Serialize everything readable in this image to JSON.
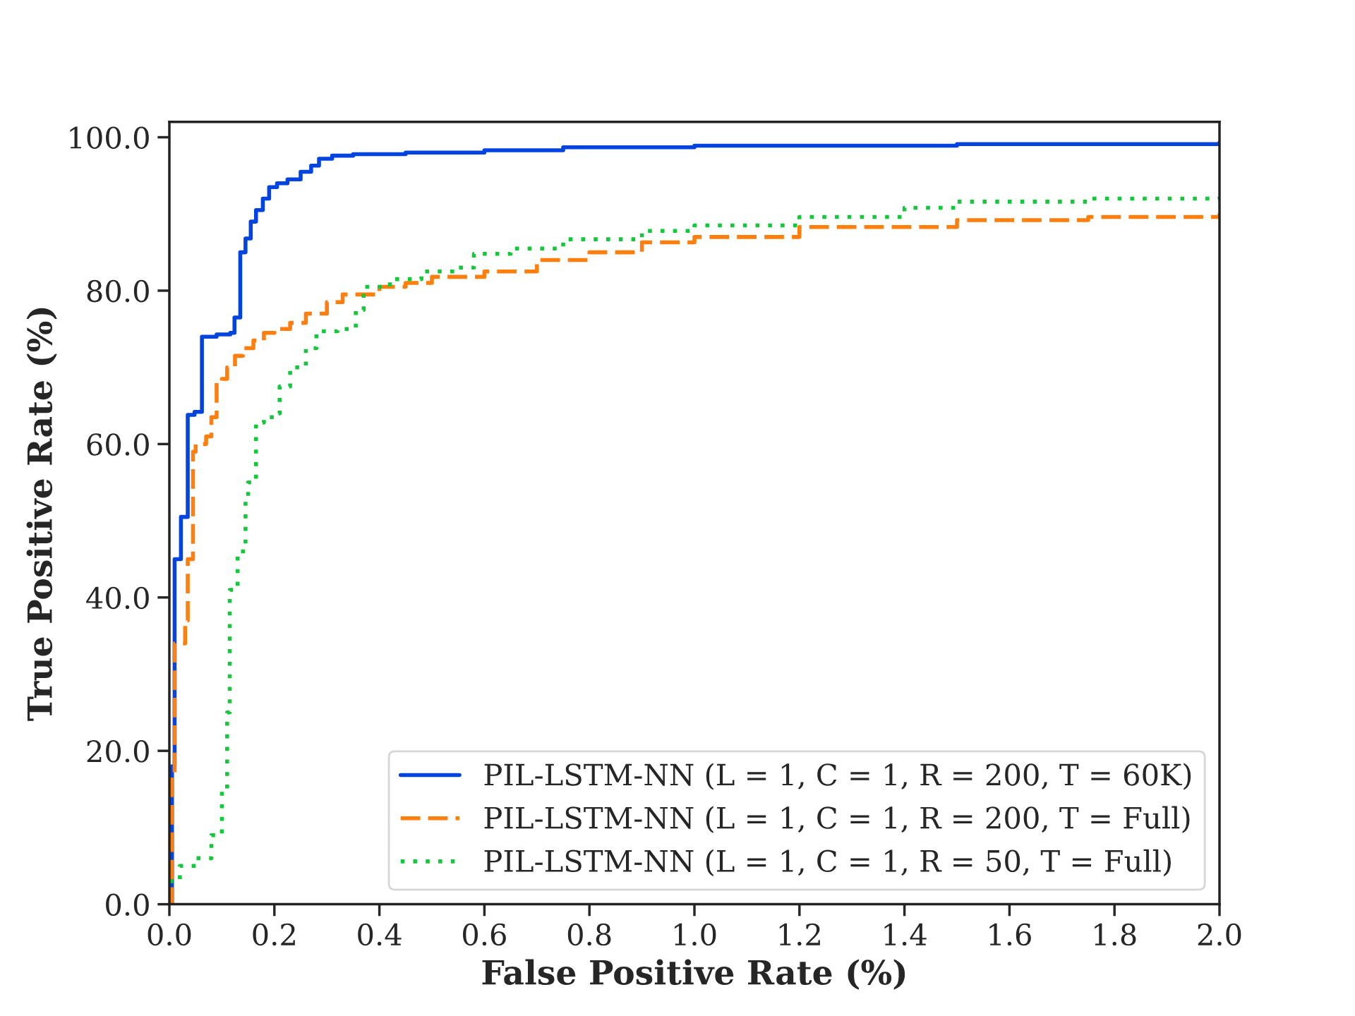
{
  "chart_data": {
    "type": "step",
    "xlabel": "False Positive Rate (%)",
    "ylabel": "True Positive Rate (%)",
    "xlim": [
      0,
      2.0
    ],
    "ylim": [
      0,
      102
    ],
    "xticks": [
      {
        "value": 0,
        "label": "0.0"
      },
      {
        "value": 0.2,
        "label": "0.2"
      },
      {
        "value": 0.4,
        "label": "0.4"
      },
      {
        "value": 0.6,
        "label": "0.6"
      },
      {
        "value": 0.8,
        "label": "0.8"
      },
      {
        "value": 1.0,
        "label": "1.0"
      },
      {
        "value": 1.2,
        "label": "1.2"
      },
      {
        "value": 1.4,
        "label": "1.4"
      },
      {
        "value": 1.6,
        "label": "1.6"
      },
      {
        "value": 1.8,
        "label": "1.8"
      },
      {
        "value": 2.0,
        "label": "2.0"
      }
    ],
    "yticks": [
      {
        "value": 0,
        "label": "0.0"
      },
      {
        "value": 20,
        "label": "20.0"
      },
      {
        "value": 40,
        "label": "40.0"
      },
      {
        "value": 60,
        "label": "60.0"
      },
      {
        "value": 80,
        "label": "80.0"
      },
      {
        "value": 100,
        "label": "100.0"
      }
    ],
    "grid": false,
    "legend": "bottom right",
    "series": [
      {
        "name": "PIL-LSTM-NN (L = 1, C = 1, R = 200, T = 60K)",
        "color": "#0343df",
        "line_style": "solid",
        "x": [
          0,
          0.005,
          0.01,
          0.022,
          0.035,
          0.048,
          0.062,
          0.09,
          0.116,
          0.124,
          0.135,
          0.145,
          0.155,
          0.165,
          0.178,
          0.19,
          0.205,
          0.225,
          0.25,
          0.27,
          0.285,
          0.31,
          0.35,
          0.45,
          0.6,
          0.75,
          1.0,
          1.5,
          2.0
        ],
        "values": [
          0,
          18,
          45,
          50.5,
          63.8,
          64.2,
          74,
          74.3,
          74.5,
          76.5,
          85,
          86.8,
          89,
          90.5,
          92,
          93.5,
          94,
          94.5,
          95.5,
          96.3,
          97.2,
          97.6,
          97.8,
          98,
          98.3,
          98.7,
          98.9,
          99.1,
          99.3
        ]
      },
      {
        "name": "PIL-LSTM-NN (L = 1, C = 1, R = 200, T = Full)",
        "color": "#ff7f0e",
        "line_style": "dashed",
        "x": [
          0,
          0.005,
          0.01,
          0.03,
          0.035,
          0.045,
          0.05,
          0.07,
          0.08,
          0.09,
          0.1,
          0.11,
          0.125,
          0.14,
          0.16,
          0.18,
          0.2,
          0.23,
          0.26,
          0.3,
          0.33,
          0.4,
          0.45,
          0.5,
          0.6,
          0.7,
          0.8,
          0.9,
          1.0,
          1.2,
          1.5,
          1.75,
          2.0
        ],
        "values": [
          0,
          17,
          34,
          37,
          45,
          59,
          60,
          61,
          63.5,
          68,
          68.5,
          70,
          71.5,
          72.5,
          73.5,
          74.5,
          75,
          75.8,
          77,
          78.5,
          79.5,
          80.5,
          81,
          81.8,
          82.5,
          84,
          85,
          86.3,
          87,
          88.3,
          89.2,
          89.6,
          90.1
        ]
      },
      {
        "name": "PIL-LSTM-NN (L = 1, C = 1, R = 50, T = Full)",
        "color": "#15c73a",
        "line_style": "dotted",
        "x": [
          0,
          0.02,
          0.05,
          0.08,
          0.1,
          0.11,
          0.115,
          0.13,
          0.145,
          0.15,
          0.165,
          0.18,
          0.2,
          0.21,
          0.23,
          0.26,
          0.28,
          0.32,
          0.355,
          0.37,
          0.42,
          0.48,
          0.55,
          0.58,
          0.65,
          0.75,
          0.9,
          1.0,
          1.2,
          1.4,
          1.5,
          1.75,
          2.0
        ],
        "values": [
          3,
          5,
          6,
          9,
          15,
          25,
          41,
          46,
          53,
          55,
          62.8,
          63.5,
          64,
          67.5,
          70,
          72.5,
          74.7,
          75,
          77.5,
          80.5,
          81.5,
          82.5,
          83,
          84.8,
          85.5,
          86.7,
          87.8,
          88.5,
          89.6,
          90.8,
          91.6,
          92,
          92.2
        ]
      }
    ]
  }
}
